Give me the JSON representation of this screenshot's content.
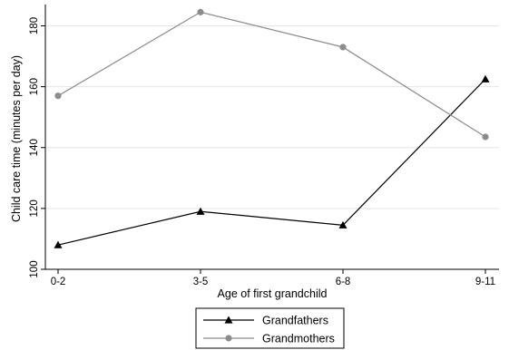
{
  "chart_data": {
    "type": "line",
    "title": "",
    "xlabel": "Age of first grandchild",
    "ylabel": "Child care time (minutes per day)",
    "categories": [
      "0-2",
      "3-5",
      "6-8",
      "9-11"
    ],
    "ylim": [
      100,
      187
    ],
    "yticks": [
      100,
      120,
      140,
      160,
      180
    ],
    "grid": "horizontal",
    "legend_position": "bottom",
    "series": [
      {
        "name": "Grandfathers",
        "values": [
          108,
          119,
          114.5,
          162.5
        ],
        "color": "#000000",
        "marker": "triangle"
      },
      {
        "name": "Grandmothers",
        "values": [
          157,
          184.5,
          173,
          143.5
        ],
        "color": "#8c8c8c",
        "marker": "circle"
      }
    ]
  }
}
